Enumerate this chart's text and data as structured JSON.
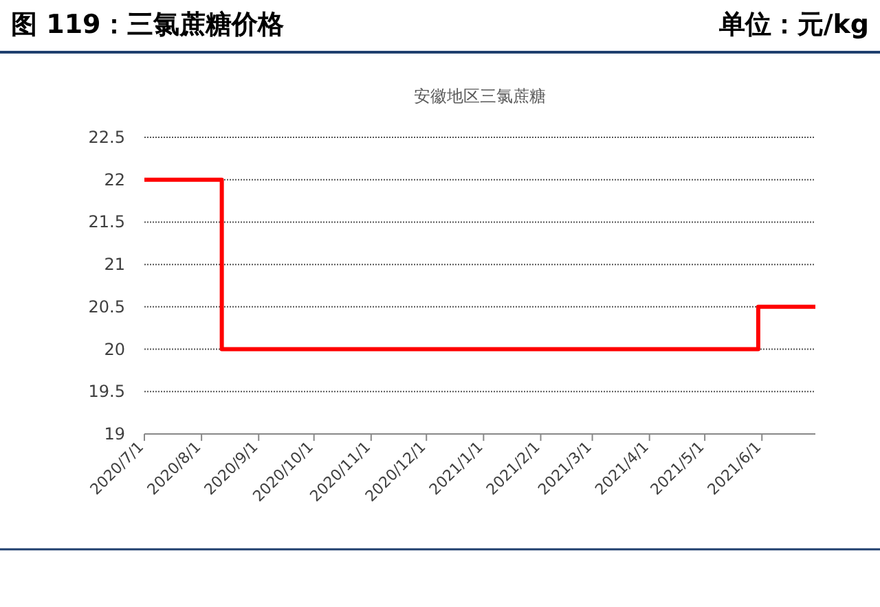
{
  "chart_data": {
    "type": "step",
    "title": "图 119：三氯蔗糖价格",
    "subtitle": "安徽地区三氯蔗糖",
    "annotations": [
      "单位：元/kg"
    ],
    "x": [
      "2020-07-01",
      "2020-08-12",
      "2021-05-30",
      "2021-06-30"
    ],
    "series": [
      {
        "color": "#ff0000",
        "values": [
          22,
          20,
          20.5,
          20.5
        ]
      }
    ],
    "xlim": [
      "2020-07-01",
      "2021-06-30"
    ],
    "xticks": [
      {
        "value": "2020-07-01",
        "label": "2020/7/1"
      },
      {
        "value": "2020-08-01",
        "label": "2020/8/1"
      },
      {
        "value": "2020-09-01",
        "label": "2020/9/1"
      },
      {
        "value": "2020-10-01",
        "label": "2020/10/1"
      },
      {
        "value": "2020-11-01",
        "label": "2020/11/1"
      },
      {
        "value": "2020-12-01",
        "label": "2020/12/1"
      },
      {
        "value": "2021-01-01",
        "label": "2021/1/1"
      },
      {
        "value": "2021-02-01",
        "label": "2021/2/1"
      },
      {
        "value": "2021-03-01",
        "label": "2021/3/1"
      },
      {
        "value": "2021-04-01",
        "label": "2021/4/1"
      },
      {
        "value": "2021-05-01",
        "label": "2021/5/1"
      },
      {
        "value": "2021-06-01",
        "label": "2021/6/1"
      }
    ],
    "ylim": [
      19,
      22.5
    ],
    "yticks": [
      {
        "value": 19,
        "label": "19"
      },
      {
        "value": 19.5,
        "label": "19.5"
      },
      {
        "value": 20,
        "label": "20"
      },
      {
        "value": 20.5,
        "label": "20.5"
      },
      {
        "value": 21,
        "label": "21"
      },
      {
        "value": 21.5,
        "label": "21.5"
      },
      {
        "value": 22,
        "label": "22"
      },
      {
        "value": 22.5,
        "label": "22.5"
      }
    ],
    "grid": "y"
  }
}
